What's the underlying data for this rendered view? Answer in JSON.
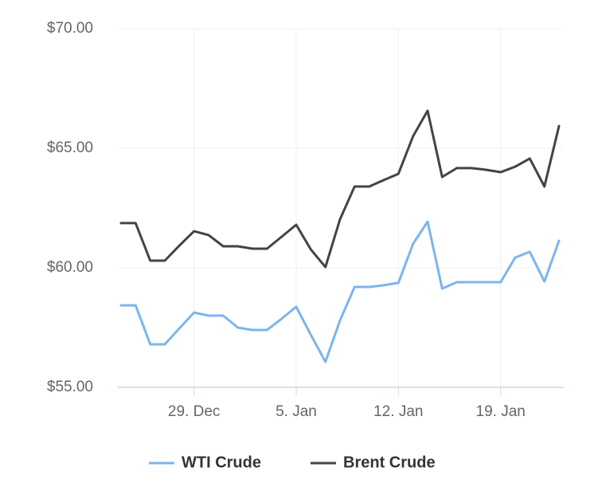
{
  "chart_data": {
    "type": "line",
    "categories": [
      null,
      null,
      null,
      null,
      null,
      "29. Dec",
      null,
      null,
      null,
      null,
      null,
      null,
      "5. Jan",
      null,
      null,
      null,
      null,
      null,
      null,
      "12. Jan",
      null,
      null,
      null,
      null,
      null,
      null,
      "19. Jan",
      null,
      null,
      null,
      null
    ],
    "series": [
      {
        "name": "WTI Crude",
        "color": "#7cb5ec",
        "values": [
          58.43,
          58.43,
          56.8,
          56.8,
          57.47,
          58.13,
          58.0,
          58.0,
          57.5,
          57.4,
          57.4,
          57.87,
          58.37,
          57.2,
          56.07,
          57.8,
          59.2,
          59.2,
          59.27,
          59.37,
          61.0,
          61.93,
          59.13,
          59.4,
          59.4,
          59.4,
          59.4,
          60.43,
          60.67,
          59.43,
          61.13
        ]
      },
      {
        "name": "Brent Crude",
        "color": "#434348",
        "values": [
          61.87,
          61.87,
          60.3,
          60.3,
          60.93,
          61.53,
          61.37,
          60.9,
          60.9,
          60.8,
          60.8,
          61.3,
          61.8,
          60.77,
          60.03,
          62.03,
          63.4,
          63.4,
          63.67,
          63.93,
          65.5,
          66.57,
          63.8,
          64.17,
          64.17,
          64.1,
          64.0,
          64.23,
          64.57,
          63.4,
          65.93
        ]
      }
    ],
    "ylim": [
      55,
      70
    ],
    "yticks": [
      {
        "value": 55,
        "label": "$55.00"
      },
      {
        "value": 60,
        "label": "$60.00"
      },
      {
        "value": 65,
        "label": "$65.00"
      },
      {
        "value": 70,
        "label": "$70.00"
      }
    ],
    "grid": true,
    "legend": "bottom"
  }
}
